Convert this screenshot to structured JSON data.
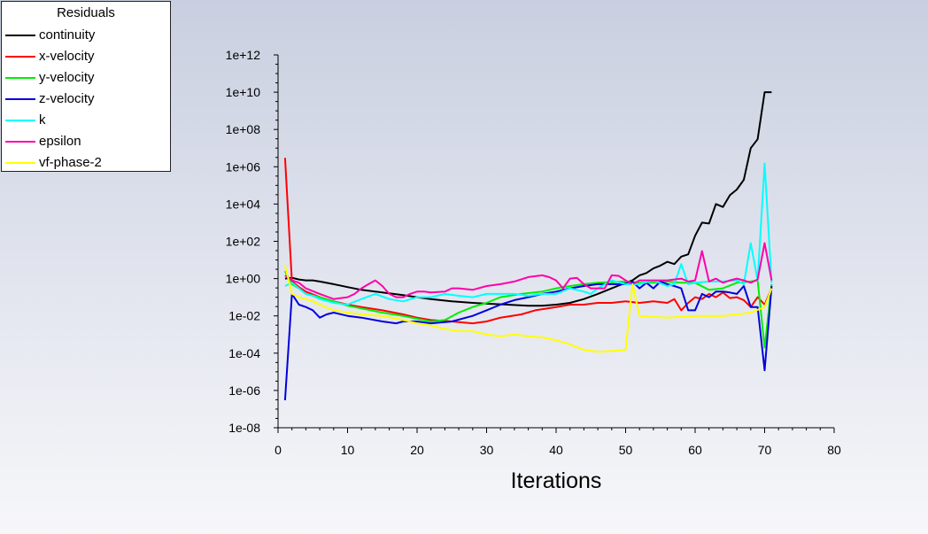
{
  "legend": {
    "title": "Residuals"
  },
  "chart_data": {
    "type": "line",
    "title": "Residuals",
    "xlabel": "Iterations",
    "ylabel": "",
    "xlim": [
      0,
      80
    ],
    "ylim_log10": [
      -8,
      12
    ],
    "y_scale": "log",
    "x_ticks": [
      0,
      10,
      20,
      30,
      40,
      50,
      60,
      70,
      80
    ],
    "y_ticks": [
      "1e-08",
      "1e-06",
      "1e-04",
      "1e-02",
      "1e+00",
      "1e+02",
      "1e+04",
      "1e+06",
      "1e+08",
      "1e+10",
      "1e+12"
    ],
    "legend_position": "top-left",
    "grid": false,
    "series": [
      {
        "name": "continuity",
        "color": "#000000",
        "points": [
          [
            1,
            1.0
          ],
          [
            2,
            1.1
          ],
          [
            3,
            0.9
          ],
          [
            4,
            0.8
          ],
          [
            5,
            0.8
          ],
          [
            6,
            0.7
          ],
          [
            8,
            0.5
          ],
          [
            10,
            0.35
          ],
          [
            12,
            0.25
          ],
          [
            15,
            0.18
          ],
          [
            18,
            0.13
          ],
          [
            20,
            0.1
          ],
          [
            22,
            0.08
          ],
          [
            25,
            0.06
          ],
          [
            28,
            0.05
          ],
          [
            30,
            0.045
          ],
          [
            33,
            0.04
          ],
          [
            36,
            0.035
          ],
          [
            38,
            0.035
          ],
          [
            40,
            0.04
          ],
          [
            42,
            0.05
          ],
          [
            44,
            0.08
          ],
          [
            46,
            0.15
          ],
          [
            48,
            0.3
          ],
          [
            50,
            0.6
          ],
          [
            51,
            0.8
          ],
          [
            52,
            1.5
          ],
          [
            53,
            2
          ],
          [
            54,
            3.5
          ],
          [
            55,
            5
          ],
          [
            56,
            8
          ],
          [
            57,
            6
          ],
          [
            58,
            15
          ],
          [
            59,
            20
          ],
          [
            60,
            200
          ],
          [
            61,
            1000
          ],
          [
            62,
            900
          ],
          [
            63,
            10000
          ],
          [
            64,
            7000
          ],
          [
            65,
            30000
          ],
          [
            66,
            60000
          ],
          [
            67,
            200000
          ],
          [
            68,
            10000000.0
          ],
          [
            69,
            30000000.0
          ],
          [
            70,
            10000000000.0
          ],
          [
            71,
            10000000000.0
          ]
        ]
      },
      {
        "name": "x-velocity",
        "color": "#ff0000",
        "points": [
          [
            1,
            3000000.0
          ],
          [
            2,
            0.7
          ],
          [
            3,
            0.35
          ],
          [
            4,
            0.2
          ],
          [
            6,
            0.1
          ],
          [
            8,
            0.06
          ],
          [
            10,
            0.04
          ],
          [
            12,
            0.03
          ],
          [
            15,
            0.02
          ],
          [
            18,
            0.012
          ],
          [
            20,
            0.008
          ],
          [
            22,
            0.006
          ],
          [
            25,
            0.005
          ],
          [
            28,
            0.004
          ],
          [
            30,
            0.005
          ],
          [
            32,
            0.008
          ],
          [
            35,
            0.012
          ],
          [
            37,
            0.02
          ],
          [
            40,
            0.03
          ],
          [
            42,
            0.04
          ],
          [
            44,
            0.04
          ],
          [
            46,
            0.05
          ],
          [
            48,
            0.05
          ],
          [
            50,
            0.06
          ],
          [
            52,
            0.05
          ],
          [
            54,
            0.06
          ],
          [
            56,
            0.05
          ],
          [
            57,
            0.08
          ],
          [
            58,
            0.02
          ],
          [
            59,
            0.05
          ],
          [
            60,
            0.1
          ],
          [
            61,
            0.08
          ],
          [
            62,
            0.15
          ],
          [
            63,
            0.1
          ],
          [
            64,
            0.18
          ],
          [
            65,
            0.09
          ],
          [
            66,
            0.1
          ],
          [
            67,
            0.07
          ],
          [
            68,
            0.03
          ],
          [
            69,
            0.1
          ],
          [
            70,
            0.04
          ],
          [
            71,
            0.3
          ]
        ]
      },
      {
        "name": "y-velocity",
        "color": "#00ee00",
        "points": [
          [
            1,
            2.5
          ],
          [
            2,
            0.5
          ],
          [
            3,
            0.3
          ],
          [
            4,
            0.15
          ],
          [
            6,
            0.1
          ],
          [
            8,
            0.06
          ],
          [
            10,
            0.035
          ],
          [
            12,
            0.025
          ],
          [
            15,
            0.015
          ],
          [
            18,
            0.01
          ],
          [
            20,
            0.007
          ],
          [
            22,
            0.005
          ],
          [
            24,
            0.006
          ],
          [
            26,
            0.015
          ],
          [
            28,
            0.03
          ],
          [
            30,
            0.05
          ],
          [
            32,
            0.1
          ],
          [
            35,
            0.15
          ],
          [
            38,
            0.2
          ],
          [
            40,
            0.3
          ],
          [
            42,
            0.4
          ],
          [
            44,
            0.5
          ],
          [
            46,
            0.6
          ],
          [
            48,
            0.65
          ],
          [
            50,
            0.7
          ],
          [
            52,
            0.6
          ],
          [
            54,
            0.6
          ],
          [
            56,
            0.7
          ],
          [
            58,
            0.6
          ],
          [
            60,
            0.6
          ],
          [
            62,
            0.25
          ],
          [
            64,
            0.3
          ],
          [
            66,
            0.6
          ],
          [
            68,
            0.7
          ],
          [
            69,
            0.8
          ],
          [
            70,
            0.0002
          ],
          [
            71,
            0.5
          ]
        ]
      },
      {
        "name": "z-velocity",
        "color": "#0000dd",
        "points": [
          [
            1,
            3e-07
          ],
          [
            2,
            0.15
          ],
          [
            3,
            0.04
          ],
          [
            4,
            0.03
          ],
          [
            5,
            0.02
          ],
          [
            6,
            0.008
          ],
          [
            7,
            0.012
          ],
          [
            8,
            0.015
          ],
          [
            10,
            0.01
          ],
          [
            12,
            0.008
          ],
          [
            15,
            0.005
          ],
          [
            17,
            0.004
          ],
          [
            18,
            0.005
          ],
          [
            20,
            0.005
          ],
          [
            22,
            0.004
          ],
          [
            25,
            0.005
          ],
          [
            28,
            0.01
          ],
          [
            30,
            0.02
          ],
          [
            32,
            0.04
          ],
          [
            34,
            0.07
          ],
          [
            36,
            0.1
          ],
          [
            38,
            0.15
          ],
          [
            40,
            0.2
          ],
          [
            42,
            0.3
          ],
          [
            44,
            0.4
          ],
          [
            46,
            0.5
          ],
          [
            48,
            0.5
          ],
          [
            50,
            0.5
          ],
          [
            51,
            0.7
          ],
          [
            52,
            0.3
          ],
          [
            53,
            0.6
          ],
          [
            54,
            0.3
          ],
          [
            55,
            0.7
          ],
          [
            56,
            0.5
          ],
          [
            57,
            0.4
          ],
          [
            58,
            0.3
          ],
          [
            59,
            0.02
          ],
          [
            60,
            0.02
          ],
          [
            61,
            0.15
          ],
          [
            62,
            0.1
          ],
          [
            63,
            0.2
          ],
          [
            64,
            0.2
          ],
          [
            65,
            0.18
          ],
          [
            66,
            0.15
          ],
          [
            67,
            0.4
          ],
          [
            68,
            0.03
          ],
          [
            69,
            0.03
          ],
          [
            70,
            1.2e-05
          ],
          [
            71,
            0.4
          ]
        ]
      },
      {
        "name": "k",
        "color": "#00ffff",
        "points": [
          [
            1,
            0.4
          ],
          [
            2,
            0.6
          ],
          [
            3,
            0.3
          ],
          [
            4,
            0.15
          ],
          [
            5,
            0.12
          ],
          [
            6,
            0.08
          ],
          [
            8,
            0.05
          ],
          [
            10,
            0.04
          ],
          [
            12,
            0.08
          ],
          [
            14,
            0.15
          ],
          [
            16,
            0.08
          ],
          [
            18,
            0.06
          ],
          [
            20,
            0.1
          ],
          [
            22,
            0.1
          ],
          [
            24,
            0.15
          ],
          [
            26,
            0.12
          ],
          [
            28,
            0.1
          ],
          [
            30,
            0.15
          ],
          [
            32,
            0.15
          ],
          [
            34,
            0.15
          ],
          [
            36,
            0.12
          ],
          [
            38,
            0.15
          ],
          [
            40,
            0.15
          ],
          [
            42,
            0.3
          ],
          [
            44,
            0.2
          ],
          [
            45,
            0.15
          ],
          [
            46,
            0.3
          ],
          [
            48,
            0.8
          ],
          [
            50,
            0.5
          ],
          [
            52,
            0.5
          ],
          [
            54,
            0.8
          ],
          [
            56,
            0.4
          ],
          [
            57,
            0.5
          ],
          [
            58,
            6
          ],
          [
            59,
            0.5
          ],
          [
            60,
            0.6
          ],
          [
            62,
            0.7
          ],
          [
            64,
            0.7
          ],
          [
            66,
            0.8
          ],
          [
            67,
            0.5
          ],
          [
            68,
            80
          ],
          [
            69,
            0.8
          ],
          [
            70,
            1500000.0
          ],
          [
            71,
            0.6
          ]
        ]
      },
      {
        "name": "epsilon",
        "color": "#ff00aa",
        "points": [
          [
            1,
            1.5
          ],
          [
            2,
            0.8
          ],
          [
            3,
            0.6
          ],
          [
            4,
            0.3
          ],
          [
            6,
            0.15
          ],
          [
            8,
            0.08
          ],
          [
            10,
            0.1
          ],
          [
            11,
            0.15
          ],
          [
            12,
            0.3
          ],
          [
            13,
            0.5
          ],
          [
            14,
            0.8
          ],
          [
            15,
            0.4
          ],
          [
            16,
            0.15
          ],
          [
            17,
            0.1
          ],
          [
            18,
            0.1
          ],
          [
            19,
            0.15
          ],
          [
            20,
            0.2
          ],
          [
            21,
            0.2
          ],
          [
            22,
            0.18
          ],
          [
            24,
            0.2
          ],
          [
            25,
            0.3
          ],
          [
            26,
            0.3
          ],
          [
            28,
            0.25
          ],
          [
            30,
            0.4
          ],
          [
            32,
            0.5
          ],
          [
            34,
            0.7
          ],
          [
            36,
            1.2
          ],
          [
            38,
            1.5
          ],
          [
            39,
            1.2
          ],
          [
            40,
            0.8
          ],
          [
            41,
            0.3
          ],
          [
            42,
            1.0
          ],
          [
            43,
            1.1
          ],
          [
            44,
            0.5
          ],
          [
            45,
            0.3
          ],
          [
            46,
            0.3
          ],
          [
            47,
            0.3
          ],
          [
            48,
            1.5
          ],
          [
            49,
            1.4
          ],
          [
            50,
            0.8
          ],
          [
            51,
            0.5
          ],
          [
            52,
            0.8
          ],
          [
            54,
            0.8
          ],
          [
            56,
            0.8
          ],
          [
            58,
            1.0
          ],
          [
            59,
            0.7
          ],
          [
            60,
            0.8
          ],
          [
            61,
            30
          ],
          [
            62,
            0.7
          ],
          [
            63,
            1.0
          ],
          [
            64,
            0.6
          ],
          [
            65,
            0.8
          ],
          [
            66,
            1.0
          ],
          [
            67,
            0.8
          ],
          [
            68,
            0.6
          ],
          [
            69,
            0.9
          ],
          [
            70,
            80
          ],
          [
            71,
            0.8
          ]
        ]
      },
      {
        "name": "vf-phase-2",
        "color": "#ffff00",
        "points": [
          [
            1,
            5
          ],
          [
            2,
            0.15
          ],
          [
            3,
            0.1
          ],
          [
            4,
            0.08
          ],
          [
            5,
            0.06
          ],
          [
            6,
            0.04
          ],
          [
            8,
            0.02
          ],
          [
            10,
            0.015
          ],
          [
            12,
            0.012
          ],
          [
            15,
            0.01
          ],
          [
            18,
            0.006
          ],
          [
            20,
            0.004
          ],
          [
            22,
            0.003
          ],
          [
            24,
            0.002
          ],
          [
            26,
            0.0015
          ],
          [
            28,
            0.0015
          ],
          [
            30,
            0.001
          ],
          [
            32,
            0.0008
          ],
          [
            34,
            0.001
          ],
          [
            36,
            0.0008
          ],
          [
            38,
            0.0007
          ],
          [
            40,
            0.0005
          ],
          [
            42,
            0.0003
          ],
          [
            44,
            0.00015
          ],
          [
            46,
            0.00012
          ],
          [
            48,
            0.00013
          ],
          [
            50,
            0.00015
          ],
          [
            51,
            0.5
          ],
          [
            52,
            0.01
          ],
          [
            54,
            0.009
          ],
          [
            56,
            0.008
          ],
          [
            58,
            0.009
          ],
          [
            60,
            0.01
          ],
          [
            62,
            0.01
          ],
          [
            64,
            0.01
          ],
          [
            66,
            0.012
          ],
          [
            68,
            0.015
          ],
          [
            70,
            0.03
          ],
          [
            71,
            0.3
          ]
        ]
      }
    ]
  }
}
